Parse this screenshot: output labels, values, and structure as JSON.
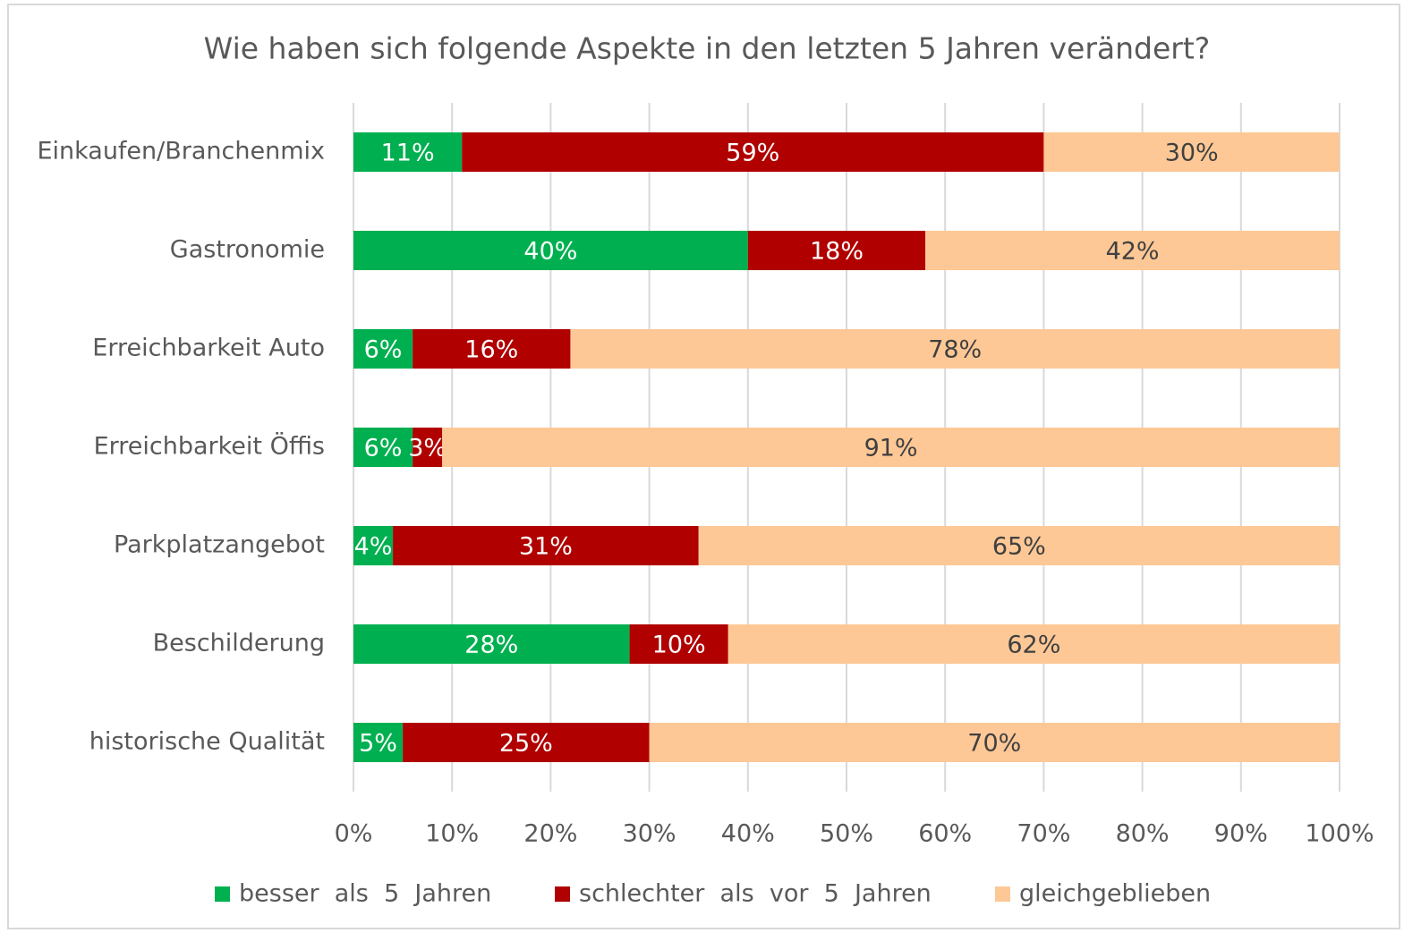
{
  "chart_data": {
    "type": "stacked_bar_horizontal",
    "title": "Wie haben sich folgende Aspekte in den letzten 5 Jahren verändert?",
    "categories": [
      "Einkaufen/Branchenmix",
      "Gastronomie",
      "Erreichbarkeit  Auto",
      "Erreichbarkeit  Öffis",
      "Parkplatzangebot",
      "Beschilderung",
      "historische  Qualität"
    ],
    "series": [
      {
        "name": "besser  als  5  Jahren",
        "color": "#00b050",
        "values": [
          11,
          40,
          6,
          6,
          4,
          28,
          5
        ],
        "value_labels": [
          "11%",
          "40%",
          "6%",
          "6%",
          "4%",
          "28%",
          "5%"
        ]
      },
      {
        "name": "schlechter  als  vor  5  Jahren",
        "color": "#b00000",
        "values": [
          59,
          18,
          16,
          3,
          31,
          10,
          25
        ],
        "value_labels": [
          "59%",
          "18%",
          "16%",
          "3%",
          "31%",
          "10%",
          "25%"
        ]
      },
      {
        "name": "gleichgeblieben",
        "color": "#fdc896",
        "values": [
          30,
          42,
          78,
          91,
          65,
          62,
          70
        ],
        "value_labels": [
          "30%",
          "42%",
          "78%",
          "91%",
          "65%",
          "62%",
          "70%"
        ]
      }
    ],
    "xlim": [
      0,
      100
    ],
    "xticks": [
      {
        "value": 0,
        "label": "0%"
      },
      {
        "value": 10,
        "label": "10%"
      },
      {
        "value": 20,
        "label": "20%"
      },
      {
        "value": 30,
        "label": "30%"
      },
      {
        "value": 40,
        "label": "40%"
      },
      {
        "value": 50,
        "label": "50%"
      },
      {
        "value": 60,
        "label": "60%"
      },
      {
        "value": 70,
        "label": "70%"
      },
      {
        "value": 80,
        "label": "80%"
      },
      {
        "value": 90,
        "label": "90%"
      },
      {
        "value": 100,
        "label": "100%"
      }
    ],
    "grid": true,
    "legend": "bottom"
  }
}
